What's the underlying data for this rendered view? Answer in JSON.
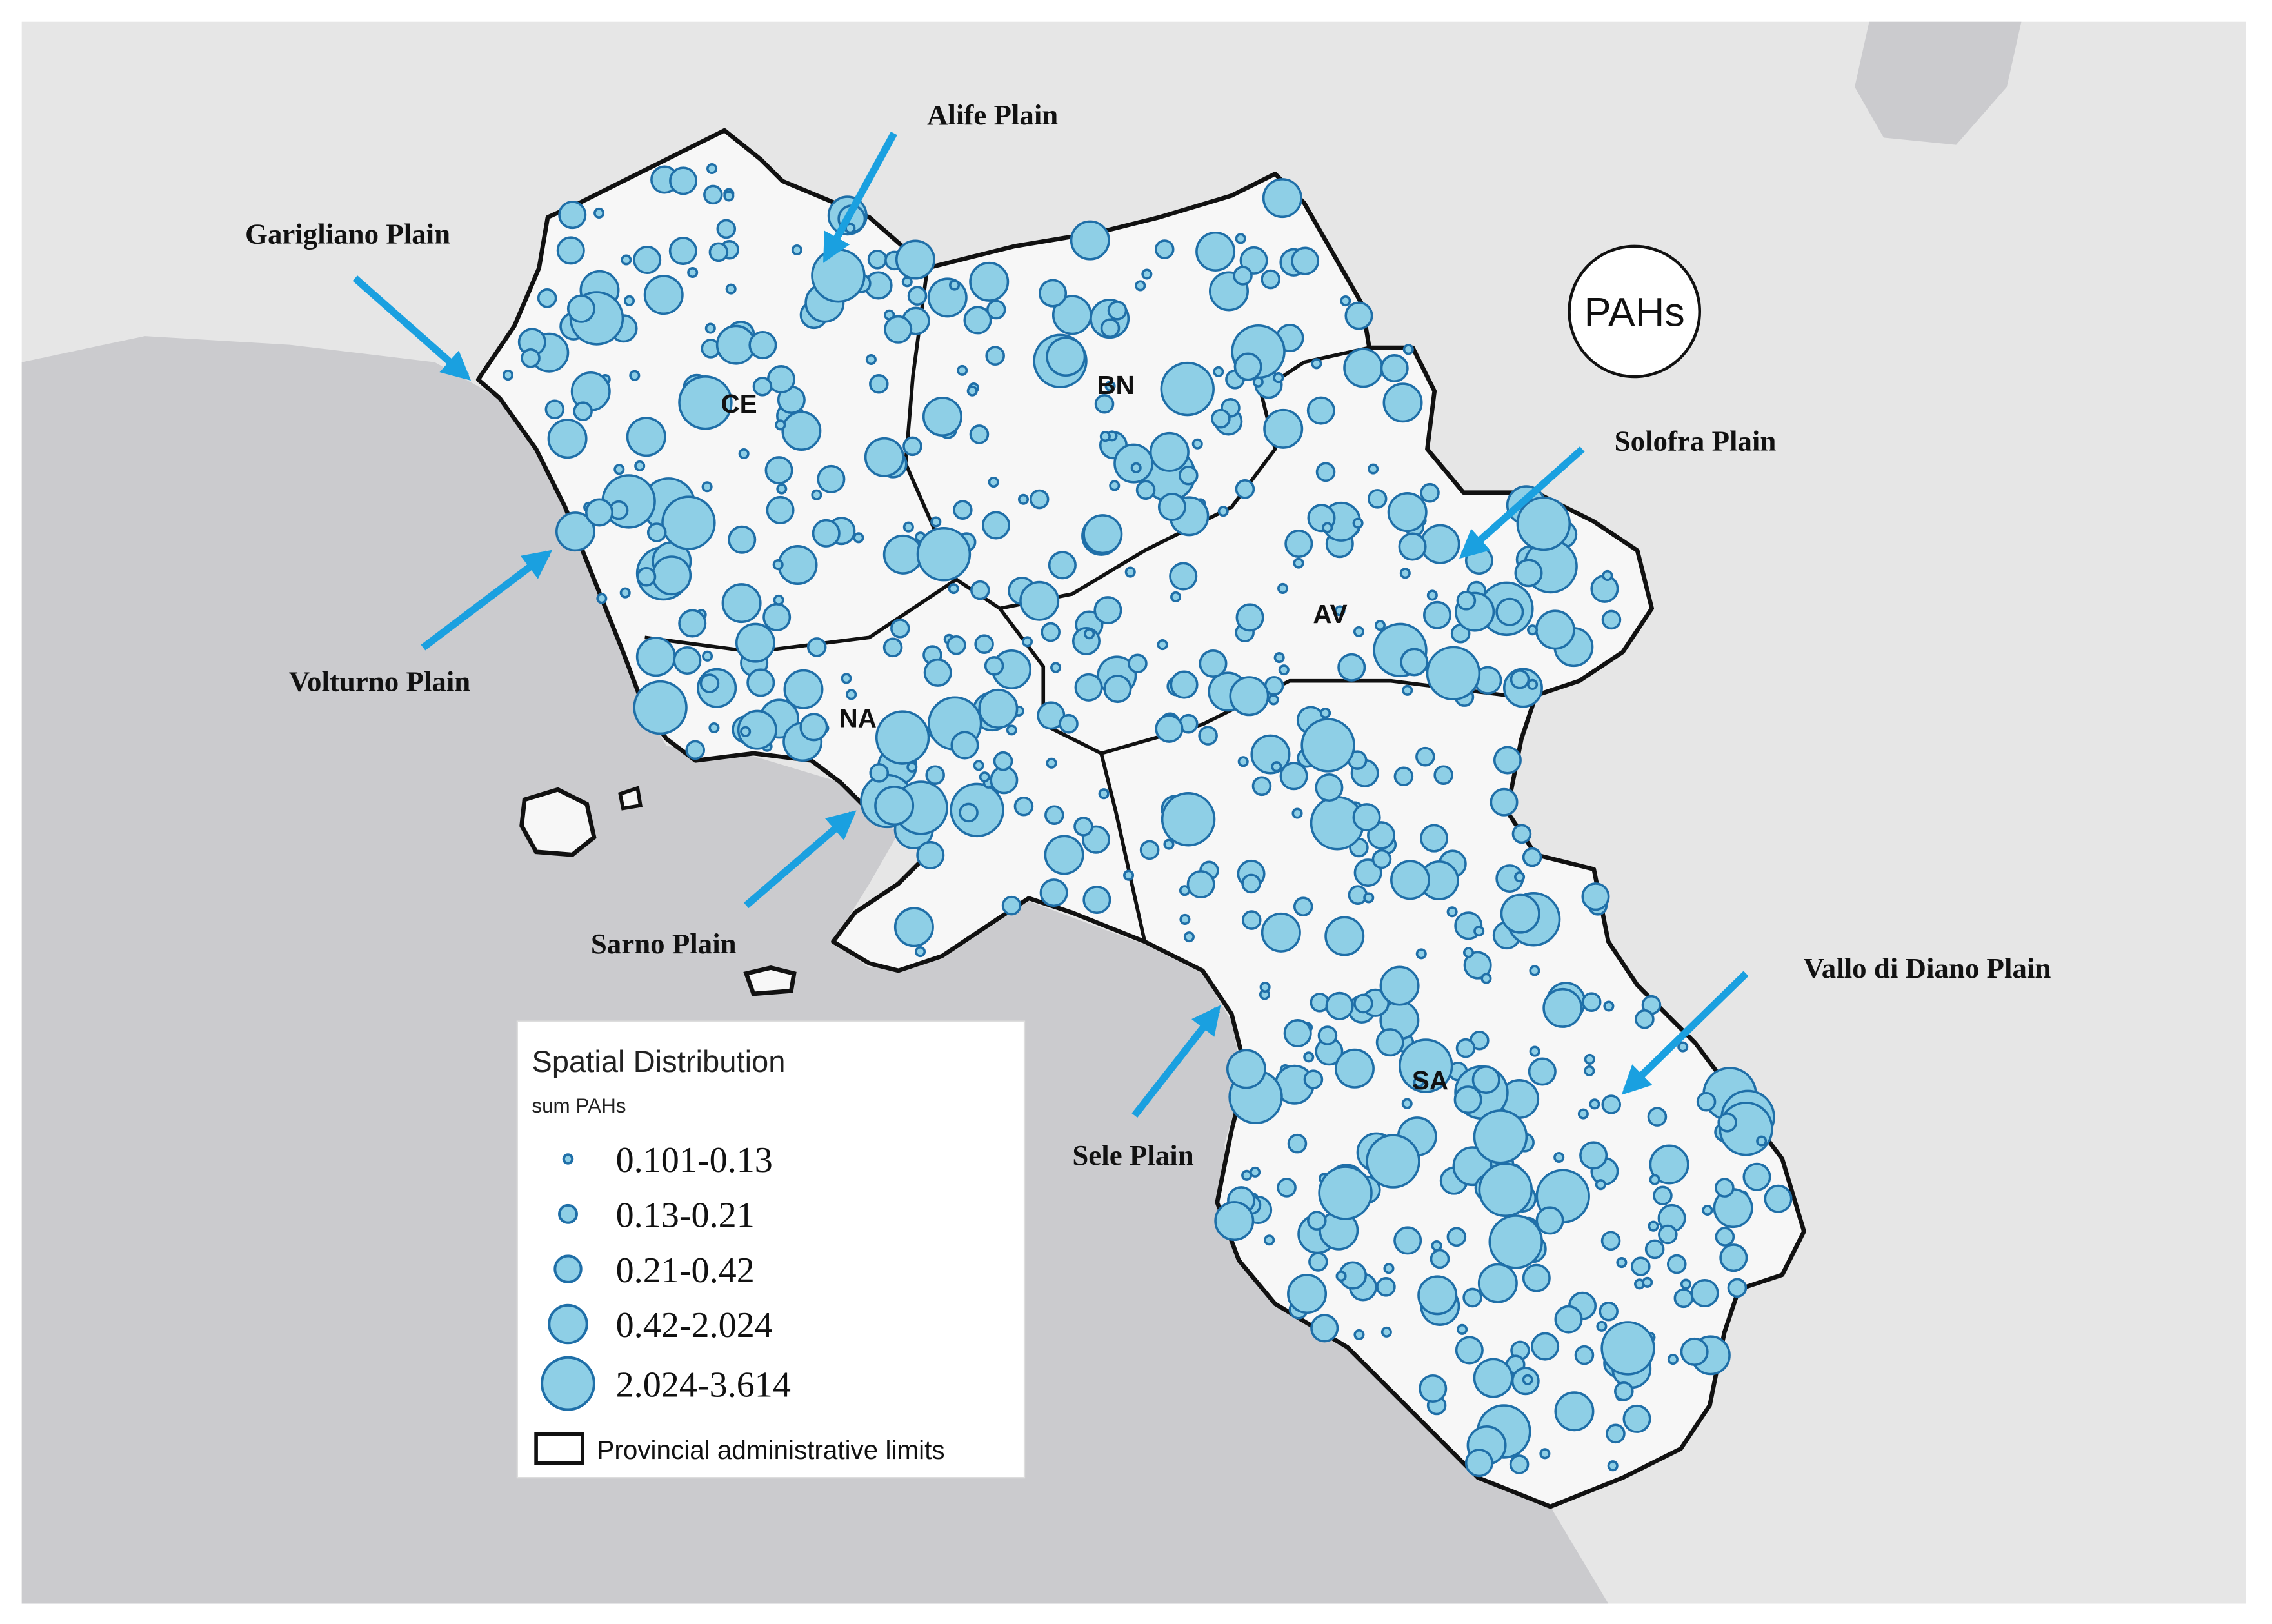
{
  "badge": "PAHs",
  "plains": [
    "Garigliano Plain",
    "Alife Plain",
    "Solofra Plain",
    "Volturno Plain",
    "Sarno Plain",
    "Sele Plain",
    "Vallo di Diano Plain"
  ],
  "provinces": [
    "CE",
    "BN",
    "AV",
    "NA",
    "SA"
  ],
  "legend": {
    "title": "Spatial Distribution",
    "subtitle": "sum PAHs",
    "entries": [
      "0.101-0.13",
      "0.13-0.21",
      "0.21-0.42",
      "0.42-2.024",
      "2.024-3.614"
    ],
    "boundary": "Provincial administrative limits"
  }
}
